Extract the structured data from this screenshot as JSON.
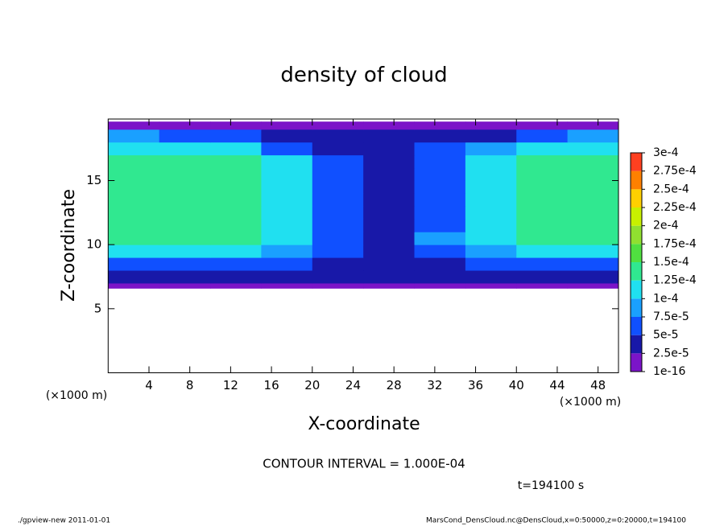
{
  "chart_data": {
    "type": "heatmap",
    "title": "density of cloud",
    "x_label": "X-coordinate",
    "y_label": "Z-coordinate",
    "x_unit": "(×1000 m)",
    "y_unit": "(×1000 m)",
    "annotation": "CONTOUR INTERVAL = 1.000E-04",
    "time_label": "t=194100 s",
    "footer_left": "./gpview-new  2011-01-01",
    "footer_right": "MarsCond_DensCloud.nc@DensCloud,x=0:50000,z=0:20000,t=194100",
    "xlim": [
      0,
      50
    ],
    "ylim": [
      0,
      19.8
    ],
    "xticks": [
      4,
      8,
      12,
      16,
      20,
      24,
      28,
      32,
      36,
      40,
      44,
      48
    ],
    "yticks": [
      5,
      10,
      15
    ],
    "x_edges": [
      0,
      5,
      10,
      15,
      20,
      25,
      30,
      35,
      40,
      45,
      50
    ],
    "z_edges": [
      6.6,
      7,
      8,
      9,
      10,
      11,
      12,
      13,
      14,
      15,
      16,
      17,
      18,
      19,
      19.6
    ],
    "values": [
      [
        1e-05,
        1e-05,
        1e-05,
        1e-05,
        1e-05,
        1e-05,
        1e-05,
        1e-05,
        1e-05,
        1e-05
      ],
      [
        4e-05,
        4e-05,
        4e-05,
        4e-05,
        3e-05,
        3e-05,
        3e-05,
        4e-05,
        4e-05,
        4e-05
      ],
      [
        6e-05,
        6e-05,
        6e-05,
        6e-05,
        4e-05,
        4e-05,
        4e-05,
        6e-05,
        6e-05,
        6e-05
      ],
      [
        0.00011,
        0.00011,
        0.00011,
        9e-05,
        5e-05,
        4e-05,
        6e-05,
        9e-05,
        0.00011,
        0.00011
      ],
      [
        0.00013,
        0.00013,
        0.00013,
        0.0001,
        5e-05,
        4e-05,
        8e-05,
        0.00011,
        0.00013,
        0.00013
      ],
      [
        0.00013,
        0.00013,
        0.00013,
        0.0001,
        5e-05,
        4e-05,
        6e-05,
        0.00011,
        0.00013,
        0.00013
      ],
      [
        0.00013,
        0.00013,
        0.00013,
        0.0001,
        5e-05,
        4e-05,
        6e-05,
        0.00011,
        0.00013,
        0.00013
      ],
      [
        0.00013,
        0.00013,
        0.00013,
        0.0001,
        5e-05,
        4e-05,
        6e-05,
        0.00011,
        0.00013,
        0.00013
      ],
      [
        0.00013,
        0.00013,
        0.00013,
        0.0001,
        5e-05,
        4e-05,
        6e-05,
        0.00011,
        0.00013,
        0.00013
      ],
      [
        0.00013,
        0.00013,
        0.00013,
        0.0001,
        5e-05,
        4e-05,
        6e-05,
        0.00011,
        0.00013,
        0.00013
      ],
      [
        0.00013,
        0.00013,
        0.00013,
        0.0001,
        5e-05,
        4e-05,
        6e-05,
        0.00011,
        0.00013,
        0.00013
      ],
      [
        0.00012,
        0.00011,
        0.0001,
        7e-05,
        4e-05,
        3e-05,
        5e-05,
        9e-05,
        0.00012,
        0.00012
      ],
      [
        8e-05,
        7e-05,
        5e-05,
        4e-05,
        4e-05,
        3e-05,
        4e-05,
        4e-05,
        6e-05,
        8e-05
      ],
      [
        1e-05,
        1e-05,
        1e-05,
        1e-05,
        1e-05,
        1e-05,
        1e-05,
        1e-05,
        1e-05,
        1e-05
      ]
    ],
    "levels": [
      {
        "value": 1e-16,
        "label": "1e-16"
      },
      {
        "value": 2.5e-05,
        "label": "2.5e-5"
      },
      {
        "value": 5e-05,
        "label": "5e-5"
      },
      {
        "value": 7.5e-05,
        "label": "7.5e-5"
      },
      {
        "value": 0.0001,
        "label": "1e-4"
      },
      {
        "value": 0.000125,
        "label": "1.25e-4"
      },
      {
        "value": 0.00015,
        "label": "1.5e-4"
      },
      {
        "value": 0.000175,
        "label": "1.75e-4"
      },
      {
        "value": 0.0002,
        "label": "2e-4"
      },
      {
        "value": 0.000225,
        "label": "2.25e-4"
      },
      {
        "value": 0.00025,
        "label": "2.5e-4"
      },
      {
        "value": 0.000275,
        "label": "2.75e-4"
      },
      {
        "value": 0.0003,
        "label": "3e-4"
      }
    ],
    "colors": [
      "#7b14c8",
      "#1818a8",
      "#1050ff",
      "#1aa0ff",
      "#20e0f0",
      "#30e890",
      "#50e040",
      "#90e030",
      "#c8f000",
      "#ffd000",
      "#ff8000",
      "#ff4020"
    ]
  }
}
